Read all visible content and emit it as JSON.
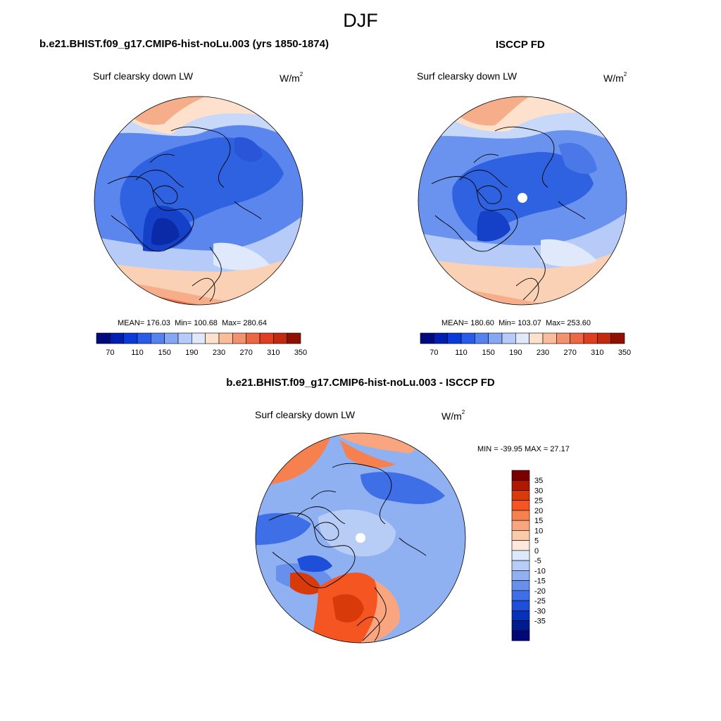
{
  "header": {
    "title": "DJF"
  },
  "panels": [
    {
      "title": "b.e21.BHIST.f09_g17.CMIP6-hist-noLu.003 (yrs 1850-1874)",
      "variable": "Surf clearsky down LW",
      "units": "W/m",
      "units_exp": "2",
      "stats": {
        "mean": "176.03",
        "min": "100.68",
        "max": "280.64"
      },
      "colorbar_labels": [
        "70",
        "110",
        "150",
        "190",
        "230",
        "270",
        "310",
        "350"
      ]
    },
    {
      "title": "ISCCP FD",
      "variable": "Surf clearsky down LW",
      "units": "W/m",
      "units_exp": "2",
      "stats": {
        "mean": "180.60",
        "min": "103.07",
        "max": "253.60"
      },
      "colorbar_labels": [
        "70",
        "110",
        "150",
        "190",
        "230",
        "270",
        "310",
        "350"
      ]
    },
    {
      "title": "b.e21.BHIST.f09_g17.CMIP6-hist-noLu.003 - ISCCP FD",
      "variable": "Surf clearsky down LW",
      "units": "W/m",
      "units_exp": "2",
      "stats_text": "MIN = -39.95 MAX =  27.17",
      "colorbar_labels": [
        "35",
        "30",
        "25",
        "20",
        "15",
        "10",
        "5",
        "0",
        "-5",
        "-10",
        "-15",
        "-20",
        "-25",
        "-30",
        "-35"
      ]
    }
  ],
  "stat_labels": {
    "mean": "MEAN=",
    "min": "Min=",
    "max": "Max="
  },
  "colors": {
    "abs_scale": [
      "#000a7d",
      "#001fb0",
      "#0a3ad8",
      "#2a5ae8",
      "#5582ee",
      "#86a8f2",
      "#b6cbf7",
      "#dfe9fb",
      "#fce1cc",
      "#f9bc9d",
      "#f3926e",
      "#ec6845",
      "#de3f22",
      "#c22a10",
      "#8f0f00"
    ],
    "diff_scale": [
      "#7a0000",
      "#b01800",
      "#d93a0a",
      "#f45521",
      "#f7804f",
      "#f9a57f",
      "#fbcaa9",
      "#fde9dc",
      "#dce8fb",
      "#b8cdf6",
      "#8fb0f1",
      "#6690ec",
      "#3f6fe6",
      "#1d4fd8",
      "#0432b8",
      "#001b8f",
      "#000878"
    ],
    "ocean_deep": "#2f62e0",
    "ice_blue": "#4a78e8",
    "mid_blue": "#8aaef3",
    "pale_blue": "#c7d8f9",
    "warm": "#f8b592",
    "hot": "#ee6b48"
  }
}
